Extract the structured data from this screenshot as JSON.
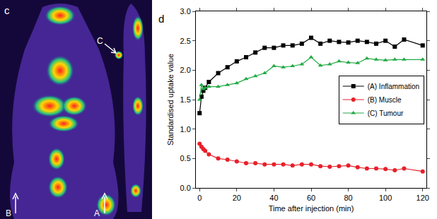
{
  "image_panel": {
    "panel_label": "c",
    "arrow_labels": [
      "B",
      "A",
      "C"
    ]
  },
  "chart_data": {
    "type": "line",
    "annotations": [
      "d"
    ],
    "x_label": "Time after injection (min)",
    "y_label": "Standardised uptake value",
    "x": [
      0,
      1,
      2,
      3,
      5,
      10,
      15,
      20,
      25,
      30,
      35,
      40,
      45,
      50,
      55,
      60,
      65,
      70,
      75,
      80,
      85,
      90,
      95,
      100,
      105,
      110,
      120
    ],
    "series": [
      {
        "name": "(A) Inflammation",
        "color": "#000000",
        "marker": "square",
        "values": [
          1.27,
          1.55,
          1.65,
          1.7,
          1.8,
          1.95,
          2.05,
          2.15,
          2.22,
          2.3,
          2.38,
          2.38,
          2.42,
          2.42,
          2.45,
          2.55,
          2.45,
          2.5,
          2.48,
          2.47,
          2.5,
          2.48,
          2.45,
          2.5,
          2.4,
          2.52,
          2.42
        ]
      },
      {
        "name": "(B) Muscle",
        "color": "#e8202a",
        "marker": "circle",
        "values": [
          0.75,
          0.7,
          0.66,
          0.63,
          0.57,
          0.5,
          0.48,
          0.45,
          0.42,
          0.42,
          0.4,
          0.4,
          0.4,
          0.38,
          0.4,
          0.4,
          0.37,
          0.36,
          0.37,
          0.38,
          0.35,
          0.33,
          0.33,
          0.32,
          0.3,
          0.33,
          0.28
        ]
      },
      {
        "name": "(C) Tumour",
        "color": "#22aa44",
        "marker": "triangle-up",
        "values": [
          1.5,
          1.75,
          1.68,
          1.7,
          1.72,
          1.72,
          1.75,
          1.78,
          1.85,
          1.9,
          1.95,
          2.07,
          2.05,
          2.07,
          2.1,
          2.22,
          2.08,
          2.1,
          2.15,
          2.13,
          2.12,
          2.2,
          2.18,
          2.17,
          2.18,
          2.18,
          2.18
        ]
      }
    ],
    "xlim": [
      -2,
      122
    ],
    "xticks": [
      0,
      20,
      40,
      60,
      80,
      100,
      120
    ],
    "ylim": [
      0,
      3
    ],
    "yticks": [
      {
        "value": 0,
        "label": "0.0"
      },
      {
        "value": 0.5,
        "label": "0.5"
      },
      {
        "value": 1,
        "label": "1.0"
      },
      {
        "value": 1.5,
        "label": "1.5"
      },
      {
        "value": 2,
        "label": "2.0"
      },
      {
        "value": 2.5,
        "label": "2.5"
      },
      {
        "value": 3,
        "label": "3.0"
      }
    ],
    "grid": false,
    "legend": "right"
  }
}
